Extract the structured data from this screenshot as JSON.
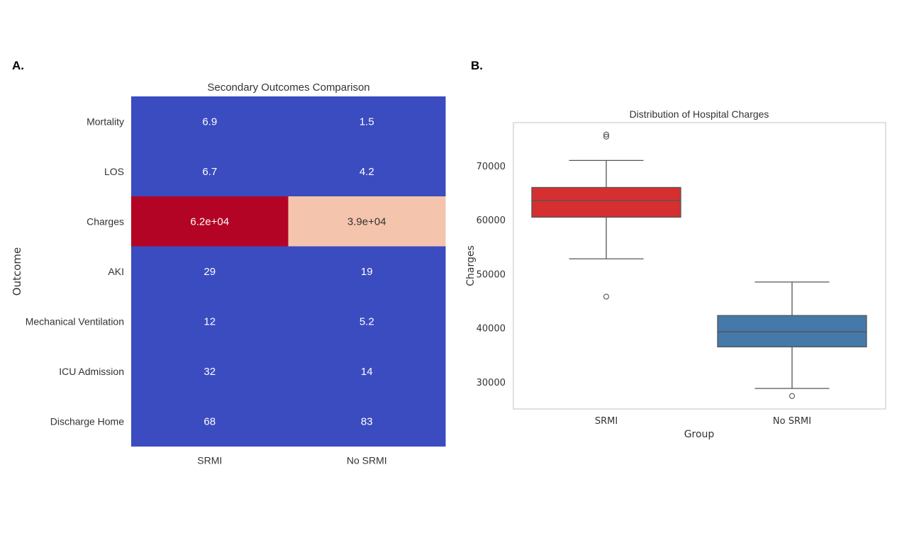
{
  "panels": {
    "a": "A.",
    "b": "B."
  },
  "chart_data": [
    {
      "type": "heatmap",
      "title": "Secondary Outcomes Comparison",
      "xlabel": "",
      "ylabel": "Outcome",
      "columns": [
        "SRMI",
        "No SRMI"
      ],
      "rows": [
        "Mortality",
        "LOS",
        "Charges",
        "AKI",
        "Mechanical Ventilation",
        "ICU Admission",
        "Discharge Home"
      ],
      "values": [
        [
          6.9,
          1.5
        ],
        [
          6.7,
          4.2
        ],
        [
          62000,
          39000
        ],
        [
          29,
          19
        ],
        [
          12,
          5.2
        ],
        [
          32,
          14
        ],
        [
          68,
          83
        ]
      ],
      "annotations": [
        [
          "6.9",
          "1.5"
        ],
        [
          "6.7",
          "4.2"
        ],
        [
          "6.2e+04",
          "3.9e+04"
        ],
        [
          "29",
          "19"
        ],
        [
          "12",
          "5.2"
        ],
        [
          "32",
          "14"
        ],
        [
          "68",
          "83"
        ]
      ],
      "colormap": "coolwarm",
      "colorbar": false,
      "colors": {
        "low": "#3b4cc0",
        "mid_high": "#f5c4ac",
        "high": "#b40426",
        "text_dark": "#333333",
        "text_light": "#ffffff"
      }
    },
    {
      "type": "box",
      "title": "Distribution of Hospital Charges",
      "xlabel": "Group",
      "ylabel": "Charges",
      "ylim": [
        25000,
        78000
      ],
      "yticks": [
        30000,
        40000,
        50000,
        60000,
        70000
      ],
      "ytick_labels": [
        "30000",
        "40000",
        "50000",
        "60000",
        "70000"
      ],
      "categories": [
        "SRMI",
        "No SRMI"
      ],
      "boxes": [
        {
          "name": "SRMI",
          "color": "#d62f2f",
          "q1": 60500,
          "median": 63600,
          "q3": 66000,
          "whisker_low": 52800,
          "whisker_high": 71000,
          "outliers": [
            75800,
            75400,
            45800
          ]
        },
        {
          "name": "No SRMI",
          "color": "#4479aa",
          "q1": 36500,
          "median": 39300,
          "q3": 42300,
          "whisker_low": 28800,
          "whisker_high": 48500,
          "outliers": [
            27400
          ]
        }
      ]
    }
  ]
}
